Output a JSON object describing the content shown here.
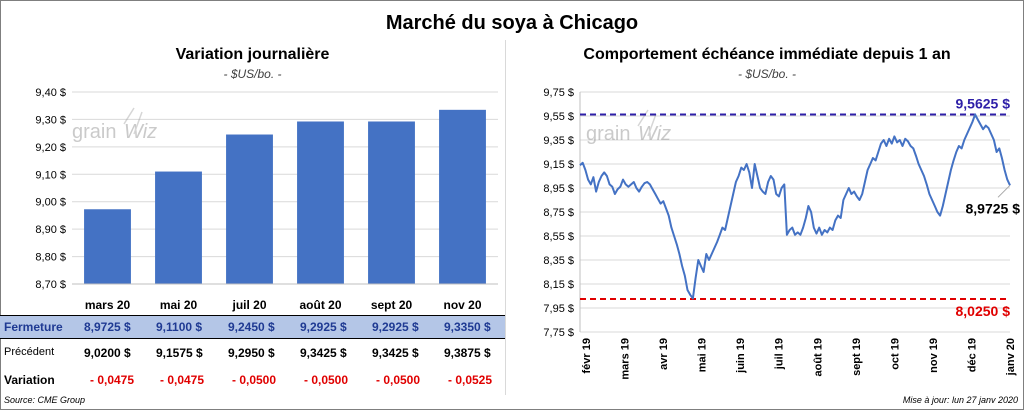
{
  "title": "Marché du soya à Chicago",
  "left_panel": {
    "title": "Variation journalière",
    "units": "- $US/bo. -"
  },
  "right_panel": {
    "title": "Comportement échéance immédiate depuis 1 an",
    "units": "- $US/bo. -"
  },
  "watermark": {
    "text_a": "grain",
    "text_b": "Wiz"
  },
  "colors": {
    "bar": "#4472c4",
    "line": "#4472c4",
    "high": "#2e1fa8",
    "low": "#e00000",
    "grid": "#d9d9d9"
  },
  "table": {
    "rows": [
      {
        "label": "Fermeture",
        "values": [
          "8,9725 $",
          "9,1100 $",
          "9,2450 $",
          "9,2925 $",
          "9,2925 $",
          "9,3350 $"
        ]
      },
      {
        "label": "Précédent",
        "values": [
          "9,0200 $",
          "9,1575 $",
          "9,2950 $",
          "9,3425 $",
          "9,3425 $",
          "9,3875 $"
        ]
      },
      {
        "label": "Variation",
        "values": [
          "- 0,0475",
          "- 0,0475",
          "- 0,0500",
          "- 0,0500",
          "- 0,0500",
          "- 0,0525"
        ]
      }
    ]
  },
  "footer": {
    "source": "Source: CME Group",
    "updated": "Mise à jour: lun 27 janv 2020"
  },
  "chart_data": [
    {
      "type": "bar",
      "title": "Variation journalière",
      "categories": [
        "mars 20",
        "mai 20",
        "juil 20",
        "août 20",
        "sept 20",
        "nov 20"
      ],
      "values": [
        8.9725,
        9.11,
        9.245,
        9.2925,
        9.2925,
        9.335
      ],
      "ylim": [
        8.7,
        9.4
      ],
      "yticks": [
        "8,70 $",
        "8,80 $",
        "8,90 $",
        "9,00 $",
        "9,10 $",
        "9,20 $",
        "9,30 $",
        "9,40 $"
      ],
      "grid": true
    },
    {
      "type": "line",
      "title": "Comportement échéance immédiate depuis 1 an",
      "x_labels": [
        "févr 19",
        "mars 19",
        "avr 19",
        "mai 19",
        "juin 19",
        "juil 19",
        "août 19",
        "sept 19",
        "oct 19",
        "nov 19",
        "déc 19",
        "janv 20"
      ],
      "ylim": [
        7.75,
        9.75
      ],
      "yticks": [
        "7,75 $",
        "7,95 $",
        "8,15 $",
        "8,35 $",
        "8,55 $",
        "8,75 $",
        "8,95 $",
        "9,15 $",
        "9,35 $",
        "9,55 $",
        "9,75 $"
      ],
      "series": [
        {
          "values": [
            9.14,
            9.16,
            9.1,
            9.02,
            8.98,
            9.04,
            8.92,
            9.0,
            9.05,
            9.08,
            9.05,
            8.98,
            8.96,
            8.9,
            8.94,
            8.96,
            9.02,
            8.98,
            8.96,
            8.98,
            9.0,
            8.95,
            8.92,
            8.96,
            8.99,
            9.0,
            8.98,
            8.94,
            8.9,
            8.86,
            8.82,
            8.84,
            8.78,
            8.72,
            8.62,
            8.55,
            8.48,
            8.4,
            8.3,
            8.22,
            8.1,
            8.06,
            8.03,
            8.2,
            8.35,
            8.3,
            8.25,
            8.4,
            8.35,
            8.4,
            8.45,
            8.5,
            8.56,
            8.62,
            8.6,
            8.7,
            8.8,
            8.9,
            9.0,
            9.05,
            9.12,
            9.1,
            9.15,
            9.08,
            8.95,
            9.15,
            9.05,
            8.95,
            8.92,
            8.9,
            9.0,
            9.05,
            9.02,
            8.9,
            8.88,
            8.95,
            8.98,
            8.56,
            8.6,
            8.62,
            8.56,
            8.58,
            8.56,
            8.62,
            8.7,
            8.8,
            8.75,
            8.62,
            8.57,
            8.62,
            8.56,
            8.6,
            8.58,
            8.62,
            8.6,
            8.68,
            8.72,
            8.7,
            8.85,
            8.9,
            8.95,
            8.9,
            8.92,
            8.88,
            8.85,
            8.9,
            9.0,
            9.1,
            9.15,
            9.2,
            9.18,
            9.25,
            9.32,
            9.35,
            9.3,
            9.36,
            9.32,
            9.38,
            9.33,
            9.35,
            9.3,
            9.36,
            9.34,
            9.3,
            9.28,
            9.22,
            9.15,
            9.1,
            9.05,
            8.98,
            8.9,
            8.85,
            8.8,
            8.75,
            8.72,
            8.8,
            8.9,
            9.0,
            9.1,
            9.18,
            9.25,
            9.3,
            9.28,
            9.35,
            9.4,
            9.45,
            9.5,
            9.5625,
            9.52,
            9.48,
            9.44,
            9.47,
            9.45,
            9.4,
            9.35,
            9.25,
            9.28,
            9.2,
            9.1,
            9.02,
            8.9725
          ]
        }
      ],
      "annotations": [
        {
          "label": "9,5625 $",
          "value": 9.5625
        },
        {
          "label": "8,0250 $",
          "value": 8.025
        },
        {
          "label": "8,9725 $",
          "value": 8.9725
        }
      ]
    }
  ]
}
